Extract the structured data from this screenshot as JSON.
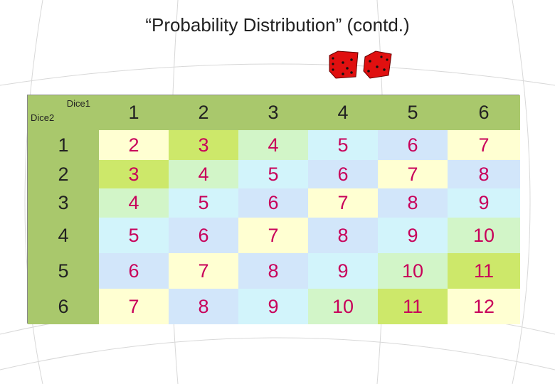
{
  "title": "“Probability Distribution” (contd.)",
  "table": {
    "corner_top": "Dice1",
    "corner_bottom": "Dice2",
    "columns": [
      1,
      2,
      3,
      4,
      5,
      6
    ],
    "row_headers": [
      1,
      2,
      3,
      4,
      5,
      6
    ],
    "rows": [
      [
        2,
        3,
        4,
        5,
        6,
        7
      ],
      [
        3,
        4,
        5,
        6,
        7,
        8
      ],
      [
        4,
        5,
        6,
        7,
        8,
        9
      ],
      [
        5,
        6,
        7,
        8,
        9,
        10
      ],
      [
        6,
        7,
        8,
        9,
        10,
        11
      ],
      [
        7,
        8,
        9,
        10,
        11,
        12
      ]
    ]
  }
}
